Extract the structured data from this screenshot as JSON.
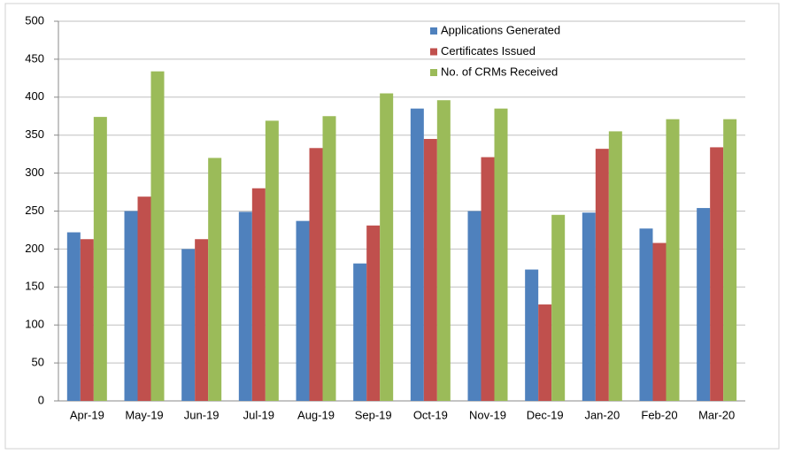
{
  "chart_data": {
    "type": "bar",
    "categories": [
      "Apr-19",
      "May-19",
      "Jun-19",
      "Jul-19",
      "Aug-19",
      "Sep-19",
      "Oct-19",
      "Nov-19",
      "Dec-19",
      "Jan-20",
      "Feb-20",
      "Mar-20"
    ],
    "series": [
      {
        "name": "Applications Generated",
        "color": "#4f81bd",
        "values": [
          222,
          250,
          200,
          249,
          237,
          181,
          385,
          250,
          173,
          248,
          227,
          254
        ]
      },
      {
        "name": "Certificates Issued",
        "color": "#c0504d",
        "values": [
          213,
          269,
          213,
          280,
          333,
          231,
          345,
          321,
          127,
          332,
          208,
          334
        ]
      },
      {
        "name": "No. of CRMs Received",
        "color": "#9bbb59",
        "values": [
          374,
          434,
          320,
          369,
          375,
          405,
          396,
          385,
          245,
          355,
          371,
          371
        ]
      }
    ],
    "ylim": [
      0,
      500
    ],
    "yticks": [
      0,
      50,
      100,
      150,
      200,
      250,
      300,
      350,
      400,
      450,
      500
    ],
    "grid": true,
    "legend": "top-right"
  }
}
